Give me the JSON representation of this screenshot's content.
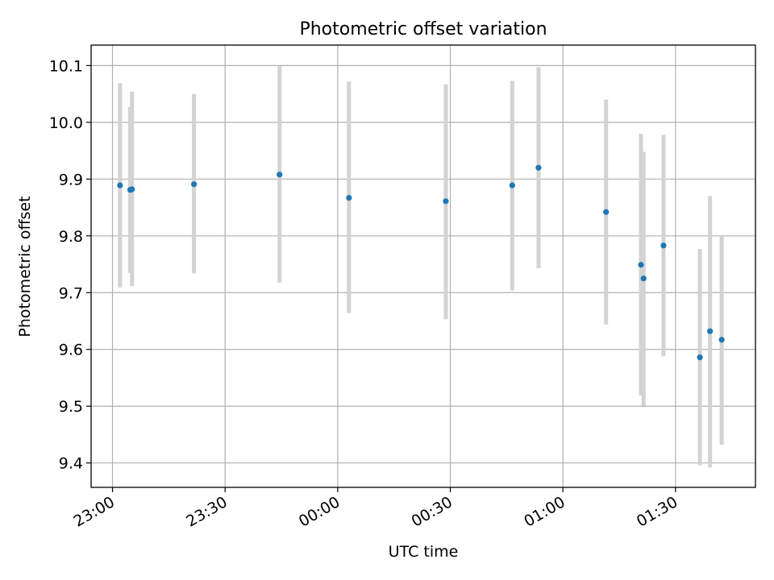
{
  "chart_data": {
    "type": "scatter",
    "title": "Photometric offset variation",
    "xlabel": "UTC time",
    "ylabel": "Photometric offset",
    "grid": true,
    "x_ticks": [
      "23:00",
      "23:30",
      "00:00",
      "00:30",
      "01:00",
      "01:30"
    ],
    "x_tick_minutes": [
      0,
      30,
      60,
      90,
      120,
      150
    ],
    "xlim_minutes": [
      -5.7,
      171.3
    ],
    "y_ticks": [
      "9.4",
      "9.5",
      "9.6",
      "9.7",
      "9.8",
      "9.9",
      "10.0",
      "10.1"
    ],
    "ylim": [
      9.357,
      10.136
    ],
    "colors": {
      "point": "#1f77b4",
      "errorbar": "#d3d3d3",
      "grid": "#b0b0b0"
    },
    "points": [
      {
        "time": "23:02",
        "y": 9.889,
        "ylow": 9.709,
        "yhigh": 10.069
      },
      {
        "time": "23:04.7",
        "y": 9.881,
        "ylow": 9.735,
        "yhigh": 10.027
      },
      {
        "time": "23:05.2",
        "y": 9.882,
        "ylow": 9.712,
        "yhigh": 10.054
      },
      {
        "time": "23:21.7",
        "y": 9.891,
        "ylow": 9.734,
        "yhigh": 10.05
      },
      {
        "time": "23:44.5",
        "y": 9.908,
        "ylow": 9.718,
        "yhigh": 10.099
      },
      {
        "time": "00:03",
        "y": 9.867,
        "ylow": 9.664,
        "yhigh": 10.072
      },
      {
        "time": "00:28.8",
        "y": 9.861,
        "ylow": 9.653,
        "yhigh": 10.067
      },
      {
        "time": "00:46.5",
        "y": 9.889,
        "ylow": 9.704,
        "yhigh": 10.073
      },
      {
        "time": "00:53.5",
        "y": 9.92,
        "ylow": 9.743,
        "yhigh": 10.097
      },
      {
        "time": "01:11.5",
        "y": 9.842,
        "ylow": 9.644,
        "yhigh": 10.04
      },
      {
        "time": "01:20.8",
        "y": 9.749,
        "ylow": 9.519,
        "yhigh": 9.98
      },
      {
        "time": "01:21.5",
        "y": 9.725,
        "ylow": 9.501,
        "yhigh": 9.948
      },
      {
        "time": "01:26.8",
        "y": 9.783,
        "ylow": 9.588,
        "yhigh": 9.978
      },
      {
        "time": "01:36.5",
        "y": 9.586,
        "ylow": 9.396,
        "yhigh": 9.777
      },
      {
        "time": "01:39.2",
        "y": 9.632,
        "ylow": 9.392,
        "yhigh": 9.87
      },
      {
        "time": "01:42.3",
        "y": 9.617,
        "ylow": 9.432,
        "yhigh": 9.8
      }
    ]
  }
}
